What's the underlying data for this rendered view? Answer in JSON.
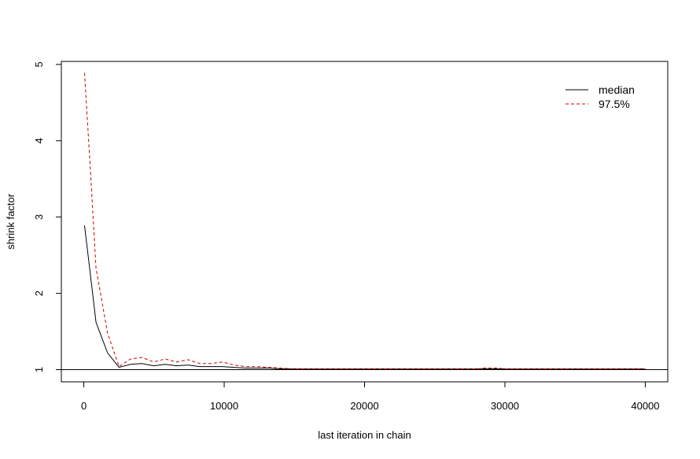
{
  "chart_data": {
    "type": "line",
    "title": "",
    "xlabel": "last iteration in chain",
    "ylabel": "shrink factor",
    "xlim": [
      -1600,
      41600
    ],
    "ylim": [
      0.84,
      5.04
    ],
    "xticks": [
      0,
      10000,
      20000,
      30000,
      40000
    ],
    "yticks": [
      1,
      2,
      3,
      4,
      5
    ],
    "reference_line": {
      "y": 1,
      "color": "#000000"
    },
    "legend": {
      "position": "top-right",
      "box": false
    },
    "grid": false,
    "series": [
      {
        "name": "median",
        "color": "#000000",
        "dash": "solid",
        "x": [
          50,
          460,
          870,
          1690,
          2510,
          3330,
          4150,
          4970,
          5790,
          6610,
          7430,
          8250,
          9070,
          9890,
          10710,
          11530,
          12350,
          13170,
          13990,
          15000,
          16000,
          18000,
          20000,
          22000,
          24000,
          26000,
          28000,
          28500,
          29500,
          30000,
          32000,
          34000,
          36000,
          38000,
          40000
        ],
        "y": [
          2.89,
          2.26,
          1.62,
          1.22,
          1.03,
          1.07,
          1.08,
          1.05,
          1.07,
          1.05,
          1.06,
          1.04,
          1.04,
          1.04,
          1.03,
          1.02,
          1.02,
          1.02,
          1.01,
          1.01,
          1.01,
          1.01,
          1.01,
          1.01,
          1.01,
          1.01,
          1.01,
          1.01,
          1.01,
          1.01,
          1.01,
          1.01,
          1.01,
          1.01,
          1.01
        ]
      },
      {
        "name": "97.5%",
        "color": "#cc0000",
        "dash": "dashed",
        "x": [
          50,
          460,
          870,
          1690,
          2510,
          3330,
          4150,
          4970,
          5790,
          6610,
          7430,
          8250,
          9070,
          9890,
          10710,
          11530,
          12350,
          13170,
          13990,
          15000,
          16000,
          18000,
          20000,
          22000,
          24000,
          26000,
          28000,
          28500,
          29500,
          30000,
          32000,
          34000,
          36000,
          38000,
          40000
        ],
        "y": [
          4.89,
          3.65,
          2.33,
          1.48,
          1.04,
          1.14,
          1.16,
          1.1,
          1.14,
          1.1,
          1.13,
          1.08,
          1.08,
          1.1,
          1.06,
          1.04,
          1.04,
          1.03,
          1.02,
          1.01,
          1.01,
          1.01,
          1.01,
          1.01,
          1.01,
          1.01,
          1.01,
          1.02,
          1.02,
          1.01,
          1.01,
          1.01,
          1.01,
          1.01,
          1.01
        ]
      }
    ]
  }
}
